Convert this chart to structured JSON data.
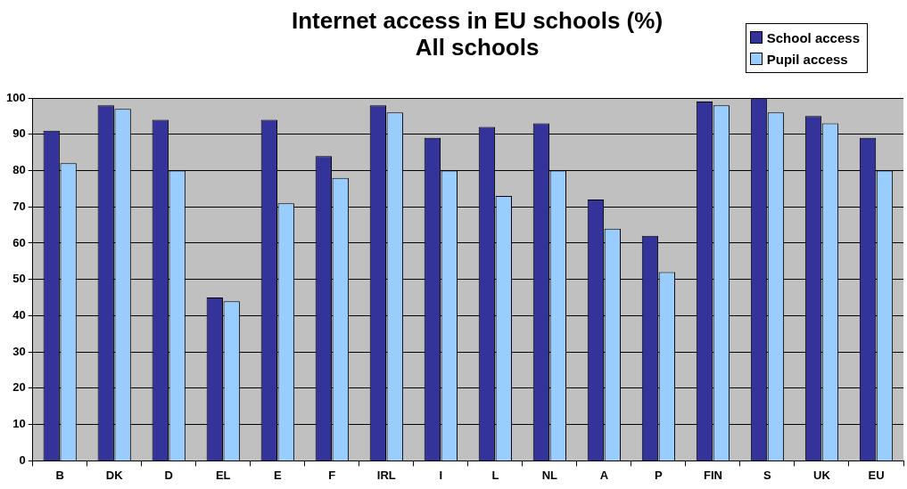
{
  "chart_data": {
    "type": "bar",
    "title": "Internet access in EU schools (%)",
    "subtitle": "All schools",
    "categories": [
      "B",
      "DK",
      "D",
      "EL",
      "E",
      "F",
      "IRL",
      "I",
      "L",
      "NL",
      "A",
      "P",
      "FIN",
      "S",
      "UK",
      "EU"
    ],
    "series": [
      {
        "name": "School access",
        "color": "#333399",
        "values": [
          91,
          98,
          94,
          45,
          94,
          84,
          98,
          89,
          92,
          93,
          72,
          62,
          99,
          100,
          95,
          89
        ]
      },
      {
        "name": "Pupil access",
        "color": "#99ccff",
        "values": [
          82,
          97,
          80,
          44,
          71,
          78,
          96,
          80,
          73,
          80,
          64,
          52,
          98,
          96,
          93,
          80
        ]
      }
    ],
    "ylim": [
      0,
      100
    ],
    "yticks": [
      0,
      10,
      20,
      30,
      40,
      50,
      60,
      70,
      80,
      90,
      100
    ],
    "grid": "y",
    "legend": "top right"
  }
}
